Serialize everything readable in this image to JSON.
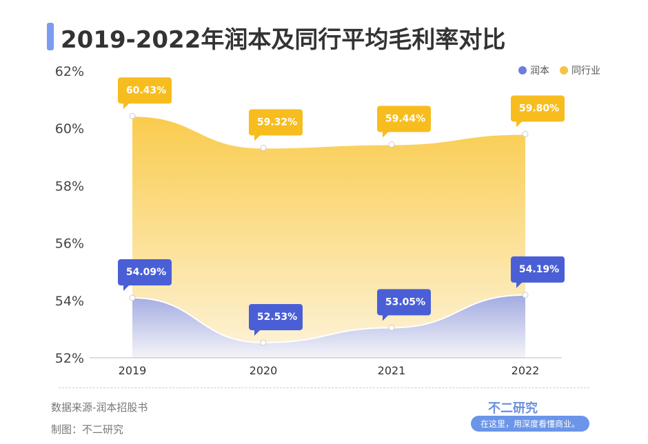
{
  "title": "2019-2022年润本及同行平均毛利率对比",
  "legend": [
    "润本",
    "同行业"
  ],
  "footer": {
    "source": "数据来源-润本招股书",
    "maker": "制图：不二研究",
    "brand": "不二研究",
    "slogan": "在这里，用深度看懂商业。"
  },
  "chart_data": {
    "type": "area",
    "title": "2019-2022年润本及同行平均毛利率对比",
    "categories": [
      "2019",
      "2020",
      "2021",
      "2022"
    ],
    "ylim": [
      52,
      62
    ],
    "yticks": [
      "52%",
      "54%",
      "56%",
      "58%",
      "60%",
      "62%"
    ],
    "series": [
      {
        "name": "润本",
        "values": [
          54.09,
          52.53,
          53.05,
          54.19
        ],
        "labels": [
          "54.09%",
          "52.53%",
          "53.05%",
          "54.19%"
        ],
        "color": "#4a5fd6"
      },
      {
        "name": "同行业",
        "values": [
          60.43,
          59.32,
          59.44,
          59.8
        ],
        "labels": [
          "60.43%",
          "59.32%",
          "59.44%",
          "59.80%"
        ],
        "color": "#f7bd1f"
      }
    ]
  }
}
